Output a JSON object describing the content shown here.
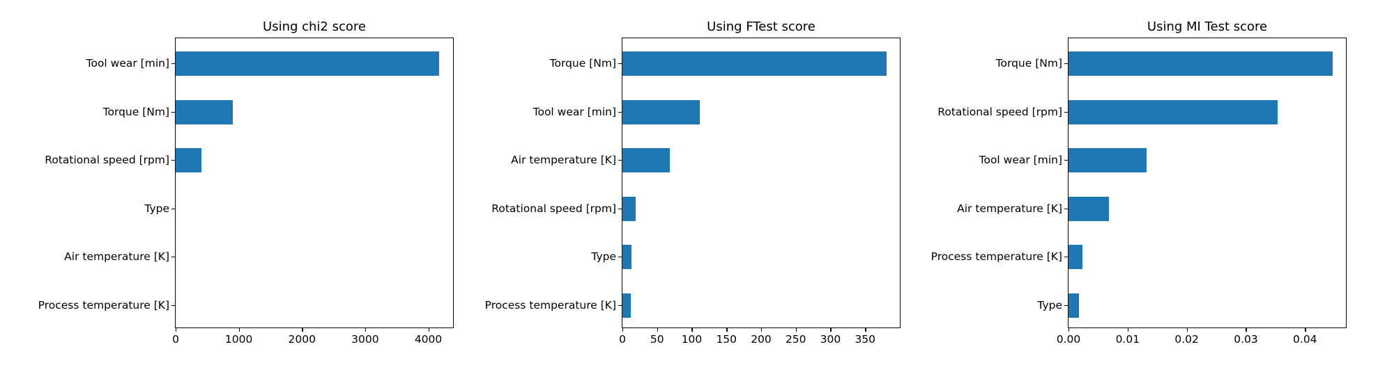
{
  "chart_data": [
    {
      "type": "bar",
      "orientation": "horizontal",
      "title": "Using chi2 score",
      "categories": [
        "Tool wear [min]",
        "Torque [Nm]",
        "Rotational speed [rpm]",
        "Type",
        "Air temperature [K]",
        "Process temperature [K]"
      ],
      "values": [
        4173,
        909,
        405,
        0,
        0,
        0
      ],
      "xlabel": "",
      "ylabel": "",
      "xlim": [
        0,
        4380
      ],
      "xticks": [
        "0",
        "1000",
        "2000",
        "3000",
        "4000"
      ],
      "xtick_values": [
        0,
        1000,
        2000,
        3000,
        4000
      ],
      "color": "#1f77b4",
      "grid": false
    },
    {
      "type": "bar",
      "orientation": "horizontal",
      "title": "Using FTest score",
      "categories": [
        "Torque [Nm]",
        "Tool wear [min]",
        "Air temperature [K]",
        "Rotational speed [rpm]",
        "Type",
        "Process temperature [K]"
      ],
      "values": [
        381,
        112,
        68,
        19,
        13,
        12
      ],
      "xlabel": "",
      "ylabel": "",
      "xlim": [
        0,
        399
      ],
      "xticks": [
        "0",
        "50",
        "100",
        "150",
        "200",
        "250",
        "300",
        "350"
      ],
      "xtick_values": [
        0,
        50,
        100,
        150,
        200,
        250,
        300,
        350
      ],
      "color": "#1f77b4",
      "grid": false
    },
    {
      "type": "bar",
      "orientation": "horizontal",
      "title": "Using MI Test score",
      "categories": [
        "Torque [Nm]",
        "Rotational speed [rpm]",
        "Tool wear [min]",
        "Air temperature [K]",
        "Process temperature [K]",
        "Type"
      ],
      "values": [
        0.0447,
        0.0354,
        0.0132,
        0.0068,
        0.0024,
        0.0018
      ],
      "xlabel": "",
      "ylabel": "",
      "xlim": [
        0,
        0.0468
      ],
      "xticks": [
        "0.00",
        "0.01",
        "0.02",
        "0.03",
        "0.04"
      ],
      "xtick_values": [
        0,
        0.01,
        0.02,
        0.03,
        0.04
      ],
      "color": "#1f77b4",
      "grid": false
    }
  ]
}
